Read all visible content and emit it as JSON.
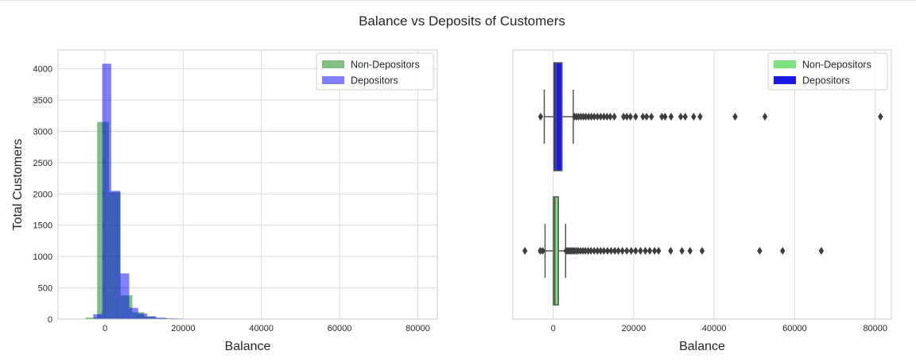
{
  "figure": {
    "title": "Balance vs Deposits of Customers"
  },
  "chart_data": [
    {
      "type": "bar",
      "subtype": "histogram",
      "xlabel": "Balance",
      "ylabel": "Total Customers",
      "xlim": [
        -12000,
        85000
      ],
      "ylim": [
        0,
        4300
      ],
      "x_ticks": [
        0,
        20000,
        40000,
        60000,
        80000
      ],
      "y_ticks": [
        0,
        500,
        1000,
        1500,
        2000,
        2500,
        3000,
        3500,
        4000
      ],
      "grid": true,
      "legend_position": "top-right",
      "series": [
        {
          "name": "Non-Depositors",
          "color": "#008000",
          "opacity": 0.5,
          "bin_edges": [
            -8000,
            -5000,
            -2000,
            1000,
            4000,
            7000,
            10000,
            13000,
            16000,
            19000,
            22000,
            25000
          ],
          "counts": [
            5,
            25,
            3150,
            2030,
            380,
            110,
            45,
            20,
            10,
            6,
            4
          ]
        },
        {
          "name": "Depositors",
          "color": "#0000ff",
          "opacity": 0.5,
          "bin_edges": [
            -3000,
            -700,
            1600,
            3900,
            6200,
            8500,
            10800,
            13100,
            15400,
            17700,
            20000,
            22300,
            24600,
            26900,
            29200,
            31500,
            33800
          ],
          "counts": [
            80,
            4080,
            2050,
            730,
            180,
            90,
            40,
            22,
            14,
            10,
            7,
            5,
            4,
            3,
            2,
            2
          ]
        }
      ]
    },
    {
      "type": "boxplot",
      "orientation": "horizontal",
      "xlabel": "Balance",
      "xlim": [
        -10000,
        84000
      ],
      "x_ticks": [
        0,
        20000,
        40000,
        60000,
        80000
      ],
      "grid": true,
      "legend_position": "top-right",
      "series": [
        {
          "name": "Non-Depositors",
          "color": "#7ee37e",
          "whisker_low": -2000,
          "q1": 60,
          "median": 420,
          "q3": 1300,
          "whisker_high": 3100,
          "outliers": [
            -7000,
            -3200,
            -2600,
            3200,
            3600,
            4000,
            4400,
            4800,
            5200,
            5700,
            6200,
            6800,
            7400,
            8000,
            8700,
            9400,
            10200,
            11000,
            11800,
            12600,
            13500,
            14400,
            15300,
            16200,
            17200,
            18300,
            19400,
            20500,
            21700,
            22900,
            24000,
            25200,
            26200,
            29200,
            32000,
            34000,
            37000,
            51300,
            57000,
            66600
          ]
        },
        {
          "name": "Depositors",
          "color": "#1a1ae6",
          "whisker_low": -2200,
          "q1": 200,
          "median": 730,
          "q3": 2200,
          "whisker_high": 5000,
          "outliers": [
            -3100,
            5300,
            5800,
            6300,
            6900,
            7500,
            8100,
            8800,
            9500,
            10200,
            11000,
            11800,
            12600,
            13400,
            14200,
            15200,
            17500,
            18300,
            19200,
            20500,
            22300,
            23200,
            24400,
            27000,
            27800,
            29300,
            31700,
            32800,
            34900,
            36500,
            45200,
            52600,
            81300
          ]
        }
      ]
    }
  ]
}
